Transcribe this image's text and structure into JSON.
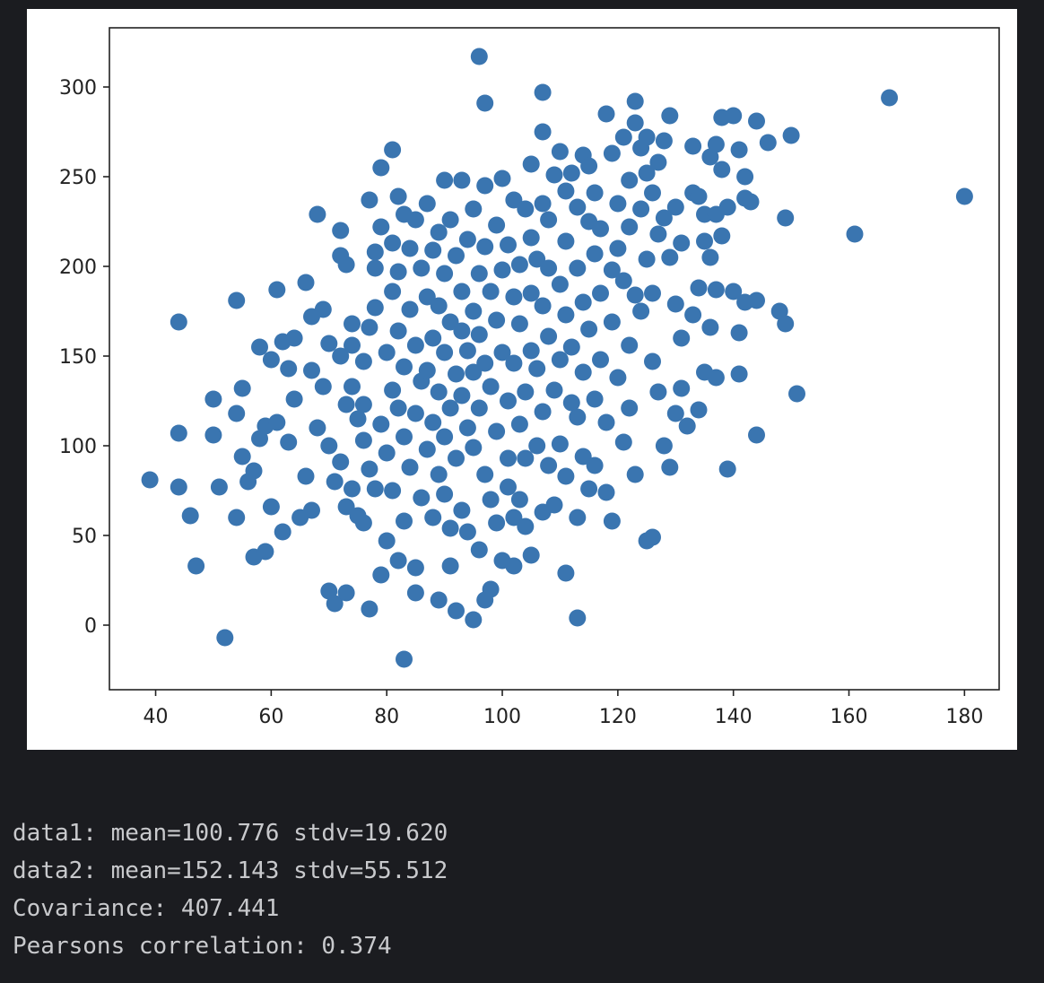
{
  "colors": {
    "background": "#1b1c20",
    "figure": "#ffffff",
    "point": "#3a75b0",
    "text": "#c8c9cc"
  },
  "chart_data": {
    "type": "scatter",
    "title": "",
    "xlabel": "",
    "ylabel": "",
    "xlim": [
      32,
      186
    ],
    "ylim": [
      -36,
      333
    ],
    "xticks": [
      40,
      60,
      80,
      100,
      120,
      140,
      160,
      180
    ],
    "yticks": [
      0,
      50,
      100,
      150,
      200,
      250,
      300
    ],
    "grid": false,
    "legend": "none",
    "point_color": "#3a75b0",
    "point_radius_px": 9.5,
    "series": [
      {
        "points": [
          [
            39,
            81
          ],
          [
            44,
            169
          ],
          [
            44,
            107
          ],
          [
            44,
            77
          ],
          [
            46,
            61
          ],
          [
            47,
            33
          ],
          [
            50,
            126
          ],
          [
            50,
            106
          ],
          [
            51,
            77
          ],
          [
            52,
            -7
          ],
          [
            54,
            181
          ],
          [
            54,
            118
          ],
          [
            54,
            60
          ],
          [
            55,
            132
          ],
          [
            55,
            94
          ],
          [
            56,
            80
          ],
          [
            57,
            86
          ],
          [
            57,
            38
          ],
          [
            58,
            155
          ],
          [
            58,
            104
          ],
          [
            59,
            111
          ],
          [
            59,
            41
          ],
          [
            60,
            148
          ],
          [
            60,
            66
          ],
          [
            61,
            187
          ],
          [
            61,
            113
          ],
          [
            62,
            158
          ],
          [
            62,
            52
          ],
          [
            63,
            143
          ],
          [
            63,
            102
          ],
          [
            64,
            160
          ],
          [
            64,
            126
          ],
          [
            65,
            60
          ],
          [
            66,
            191
          ],
          [
            66,
            83
          ],
          [
            67,
            172
          ],
          [
            67,
            142
          ],
          [
            67,
            64
          ],
          [
            68,
            229
          ],
          [
            68,
            110
          ],
          [
            69,
            176
          ],
          [
            69,
            133
          ],
          [
            70,
            157
          ],
          [
            70,
            100
          ],
          [
            70,
            19
          ],
          [
            71,
            12
          ],
          [
            71,
            80
          ],
          [
            72,
            220
          ],
          [
            72,
            206
          ],
          [
            72,
            150
          ],
          [
            72,
            91
          ],
          [
            73,
            201
          ],
          [
            73,
            123
          ],
          [
            73,
            66
          ],
          [
            73,
            18
          ],
          [
            74,
            168
          ],
          [
            74,
            156
          ],
          [
            74,
            133
          ],
          [
            74,
            76
          ],
          [
            75,
            115
          ],
          [
            75,
            61
          ],
          [
            76,
            147
          ],
          [
            76,
            123
          ],
          [
            76,
            103
          ],
          [
            76,
            57
          ],
          [
            77,
            237
          ],
          [
            77,
            166
          ],
          [
            77,
            87
          ],
          [
            77,
            9
          ],
          [
            78,
            208
          ],
          [
            78,
            177
          ],
          [
            78,
            199
          ],
          [
            78,
            76
          ],
          [
            79,
            255
          ],
          [
            79,
            222
          ],
          [
            79,
            112
          ],
          [
            79,
            28
          ],
          [
            80,
            152
          ],
          [
            80,
            96
          ],
          [
            80,
            47
          ],
          [
            81,
            265
          ],
          [
            81,
            213
          ],
          [
            81,
            186
          ],
          [
            81,
            131
          ],
          [
            81,
            75
          ],
          [
            82,
            239
          ],
          [
            82,
            197
          ],
          [
            82,
            164
          ],
          [
            82,
            121
          ],
          [
            82,
            36
          ],
          [
            83,
            -19
          ],
          [
            83,
            229
          ],
          [
            83,
            144
          ],
          [
            83,
            105
          ],
          [
            83,
            58
          ],
          [
            84,
            210
          ],
          [
            84,
            176
          ],
          [
            84,
            88
          ],
          [
            85,
            226
          ],
          [
            85,
            156
          ],
          [
            85,
            118
          ],
          [
            85,
            32
          ],
          [
            85,
            18
          ],
          [
            86,
            199
          ],
          [
            86,
            136
          ],
          [
            86,
            71
          ],
          [
            87,
            235
          ],
          [
            87,
            183
          ],
          [
            87,
            142
          ],
          [
            87,
            98
          ],
          [
            88,
            209
          ],
          [
            88,
            160
          ],
          [
            88,
            113
          ],
          [
            88,
            60
          ],
          [
            89,
            219
          ],
          [
            89,
            178
          ],
          [
            89,
            130
          ],
          [
            89,
            84
          ],
          [
            89,
            14
          ],
          [
            90,
            248
          ],
          [
            90,
            196
          ],
          [
            90,
            152
          ],
          [
            90,
            105
          ],
          [
            90,
            73
          ],
          [
            91,
            226
          ],
          [
            91,
            169
          ],
          [
            91,
            121
          ],
          [
            91,
            54
          ],
          [
            91,
            33
          ],
          [
            92,
            206
          ],
          [
            92,
            140
          ],
          [
            92,
            93
          ],
          [
            92,
            8
          ],
          [
            93,
            248
          ],
          [
            93,
            186
          ],
          [
            93,
            164
          ],
          [
            93,
            128
          ],
          [
            93,
            64
          ],
          [
            94,
            215
          ],
          [
            94,
            153
          ],
          [
            94,
            110
          ],
          [
            94,
            52
          ],
          [
            95,
            232
          ],
          [
            95,
            175
          ],
          [
            95,
            141
          ],
          [
            95,
            99
          ],
          [
            95,
            3
          ],
          [
            96,
            317
          ],
          [
            96,
            196
          ],
          [
            96,
            162
          ],
          [
            96,
            121
          ],
          [
            96,
            42
          ],
          [
            97,
            291
          ],
          [
            97,
            245
          ],
          [
            97,
            211
          ],
          [
            97,
            146
          ],
          [
            97,
            84
          ],
          [
            97,
            14
          ],
          [
            98,
            186
          ],
          [
            98,
            133
          ],
          [
            98,
            70
          ],
          [
            98,
            20
          ],
          [
            99,
            223
          ],
          [
            99,
            170
          ],
          [
            99,
            108
          ],
          [
            99,
            57
          ],
          [
            100,
            249
          ],
          [
            100,
            198
          ],
          [
            100,
            152
          ],
          [
            100,
            36
          ],
          [
            101,
            212
          ],
          [
            101,
            125
          ],
          [
            101,
            93
          ],
          [
            101,
            77
          ],
          [
            102,
            237
          ],
          [
            102,
            183
          ],
          [
            102,
            146
          ],
          [
            102,
            60
          ],
          [
            102,
            33
          ],
          [
            103,
            201
          ],
          [
            103,
            168
          ],
          [
            103,
            112
          ],
          [
            103,
            70
          ],
          [
            104,
            232
          ],
          [
            104,
            130
          ],
          [
            104,
            93
          ],
          [
            104,
            55
          ],
          [
            105,
            257
          ],
          [
            105,
            216
          ],
          [
            105,
            185
          ],
          [
            105,
            153
          ],
          [
            105,
            39
          ],
          [
            106,
            204
          ],
          [
            106,
            143
          ],
          [
            106,
            100
          ],
          [
            107,
            275
          ],
          [
            107,
            235
          ],
          [
            107,
            178
          ],
          [
            107,
            119
          ],
          [
            107,
            63
          ],
          [
            107,
            297
          ],
          [
            108,
            226
          ],
          [
            108,
            199
          ],
          [
            108,
            161
          ],
          [
            108,
            89
          ],
          [
            109,
            251
          ],
          [
            109,
            131
          ],
          [
            109,
            67
          ],
          [
            110,
            264
          ],
          [
            110,
            190
          ],
          [
            110,
            148
          ],
          [
            110,
            101
          ],
          [
            111,
            242
          ],
          [
            111,
            214
          ],
          [
            111,
            173
          ],
          [
            111,
            83
          ],
          [
            111,
            29
          ],
          [
            112,
            252
          ],
          [
            112,
            155
          ],
          [
            112,
            124
          ],
          [
            113,
            233
          ],
          [
            113,
            199
          ],
          [
            113,
            116
          ],
          [
            113,
            60
          ],
          [
            113,
            4
          ],
          [
            114,
            262
          ],
          [
            114,
            180
          ],
          [
            114,
            141
          ],
          [
            114,
            94
          ],
          [
            115,
            225
          ],
          [
            115,
            256
          ],
          [
            115,
            165
          ],
          [
            115,
            76
          ],
          [
            116,
            241
          ],
          [
            116,
            207
          ],
          [
            116,
            126
          ],
          [
            116,
            89
          ],
          [
            117,
            221
          ],
          [
            117,
            185
          ],
          [
            117,
            148
          ],
          [
            118,
            285
          ],
          [
            118,
            113
          ],
          [
            118,
            74
          ],
          [
            119,
            263
          ],
          [
            119,
            198
          ],
          [
            119,
            169
          ],
          [
            119,
            58
          ],
          [
            120,
            235
          ],
          [
            120,
            210
          ],
          [
            120,
            138
          ],
          [
            121,
            272
          ],
          [
            121,
            192
          ],
          [
            121,
            102
          ],
          [
            122,
            248
          ],
          [
            122,
            222
          ],
          [
            122,
            156
          ],
          [
            122,
            121
          ],
          [
            123,
            292
          ],
          [
            123,
            280
          ],
          [
            123,
            184
          ],
          [
            123,
            84
          ],
          [
            124,
            266
          ],
          [
            124,
            232
          ],
          [
            124,
            175
          ],
          [
            125,
            272
          ],
          [
            125,
            252
          ],
          [
            125,
            204
          ],
          [
            125,
            47
          ],
          [
            126,
            241
          ],
          [
            126,
            185
          ],
          [
            126,
            147
          ],
          [
            126,
            49
          ],
          [
            127,
            258
          ],
          [
            127,
            218
          ],
          [
            127,
            130
          ],
          [
            128,
            270
          ],
          [
            128,
            227
          ],
          [
            128,
            100
          ],
          [
            129,
            284
          ],
          [
            129,
            205
          ],
          [
            129,
            88
          ],
          [
            130,
            233
          ],
          [
            130,
            179
          ],
          [
            130,
            118
          ],
          [
            131,
            213
          ],
          [
            131,
            160
          ],
          [
            131,
            132
          ],
          [
            132,
            111
          ],
          [
            133,
            267
          ],
          [
            133,
            241
          ],
          [
            133,
            173
          ],
          [
            134,
            239
          ],
          [
            134,
            188
          ],
          [
            134,
            120
          ],
          [
            135,
            214
          ],
          [
            135,
            229
          ],
          [
            135,
            141
          ],
          [
            136,
            261
          ],
          [
            136,
            205
          ],
          [
            136,
            166
          ],
          [
            137,
            268
          ],
          [
            137,
            229
          ],
          [
            137,
            187
          ],
          [
            137,
            138
          ],
          [
            138,
            283
          ],
          [
            138,
            254
          ],
          [
            138,
            217
          ],
          [
            139,
            87
          ],
          [
            139,
            233
          ],
          [
            140,
            284
          ],
          [
            140,
            186
          ],
          [
            141,
            265
          ],
          [
            141,
            163
          ],
          [
            141,
            140
          ],
          [
            142,
            250
          ],
          [
            142,
            238
          ],
          [
            142,
            180
          ],
          [
            143,
            236
          ],
          [
            144,
            281
          ],
          [
            144,
            181
          ],
          [
            144,
            106
          ],
          [
            146,
            269
          ],
          [
            148,
            175
          ],
          [
            149,
            168
          ],
          [
            149,
            227
          ],
          [
            150,
            273
          ],
          [
            151,
            129
          ],
          [
            161,
            218
          ],
          [
            167,
            294
          ],
          [
            180,
            239
          ]
        ]
      }
    ]
  },
  "output": {
    "lines": [
      "data1: mean=100.776 stdv=19.620",
      "data2: mean=152.143 stdv=55.512",
      "Covariance: 407.441",
      "Pearsons correlation: 0.374"
    ]
  }
}
